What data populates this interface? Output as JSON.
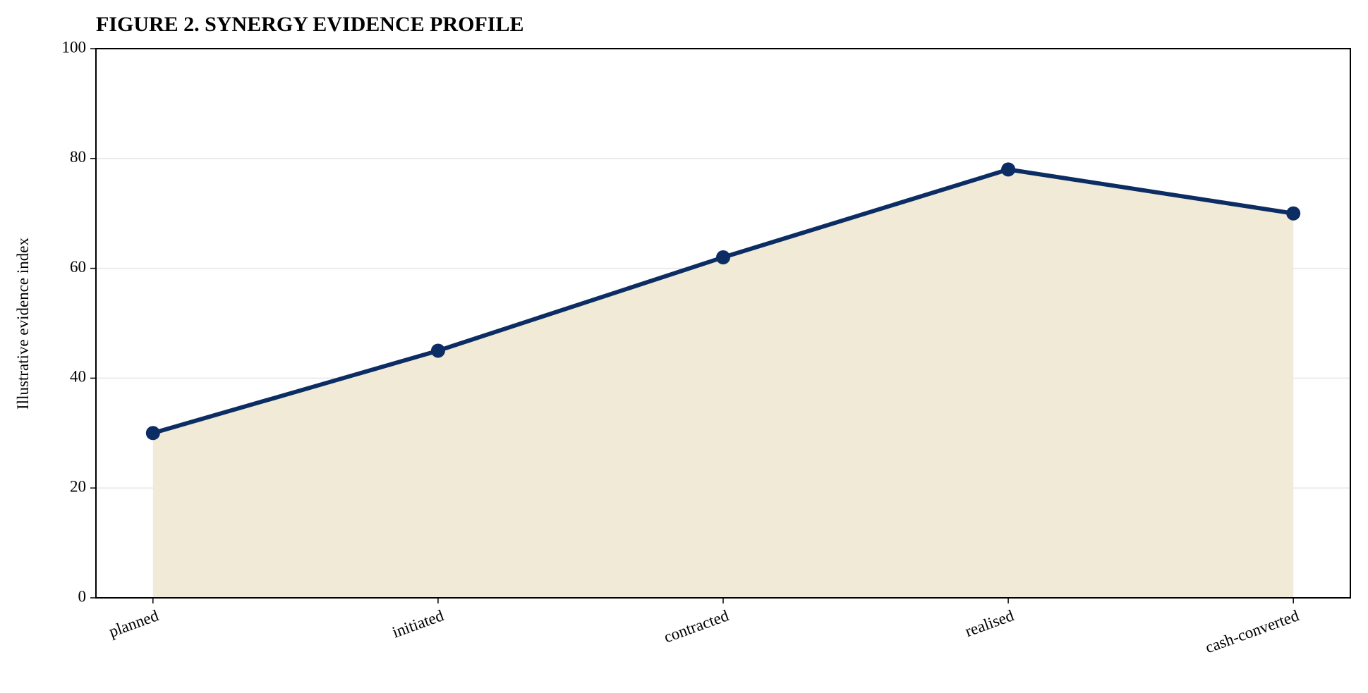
{
  "chart_data": {
    "type": "line",
    "title": "FIGURE 2. SYNERGY EVIDENCE PROFILE",
    "y_label": "Illustrative evidence index",
    "categories": [
      "planned",
      "initiated",
      "contracted",
      "realised",
      "cash-converted"
    ],
    "series": [
      {
        "values": [
          30,
          45,
          62,
          78,
          70
        ],
        "color": "#0b2d63"
      }
    ],
    "fill_color": "#f0ead6",
    "ylim": [
      0,
      100
    ],
    "yticks": [
      0,
      20,
      40,
      60,
      80,
      100
    ],
    "grid": true
  }
}
